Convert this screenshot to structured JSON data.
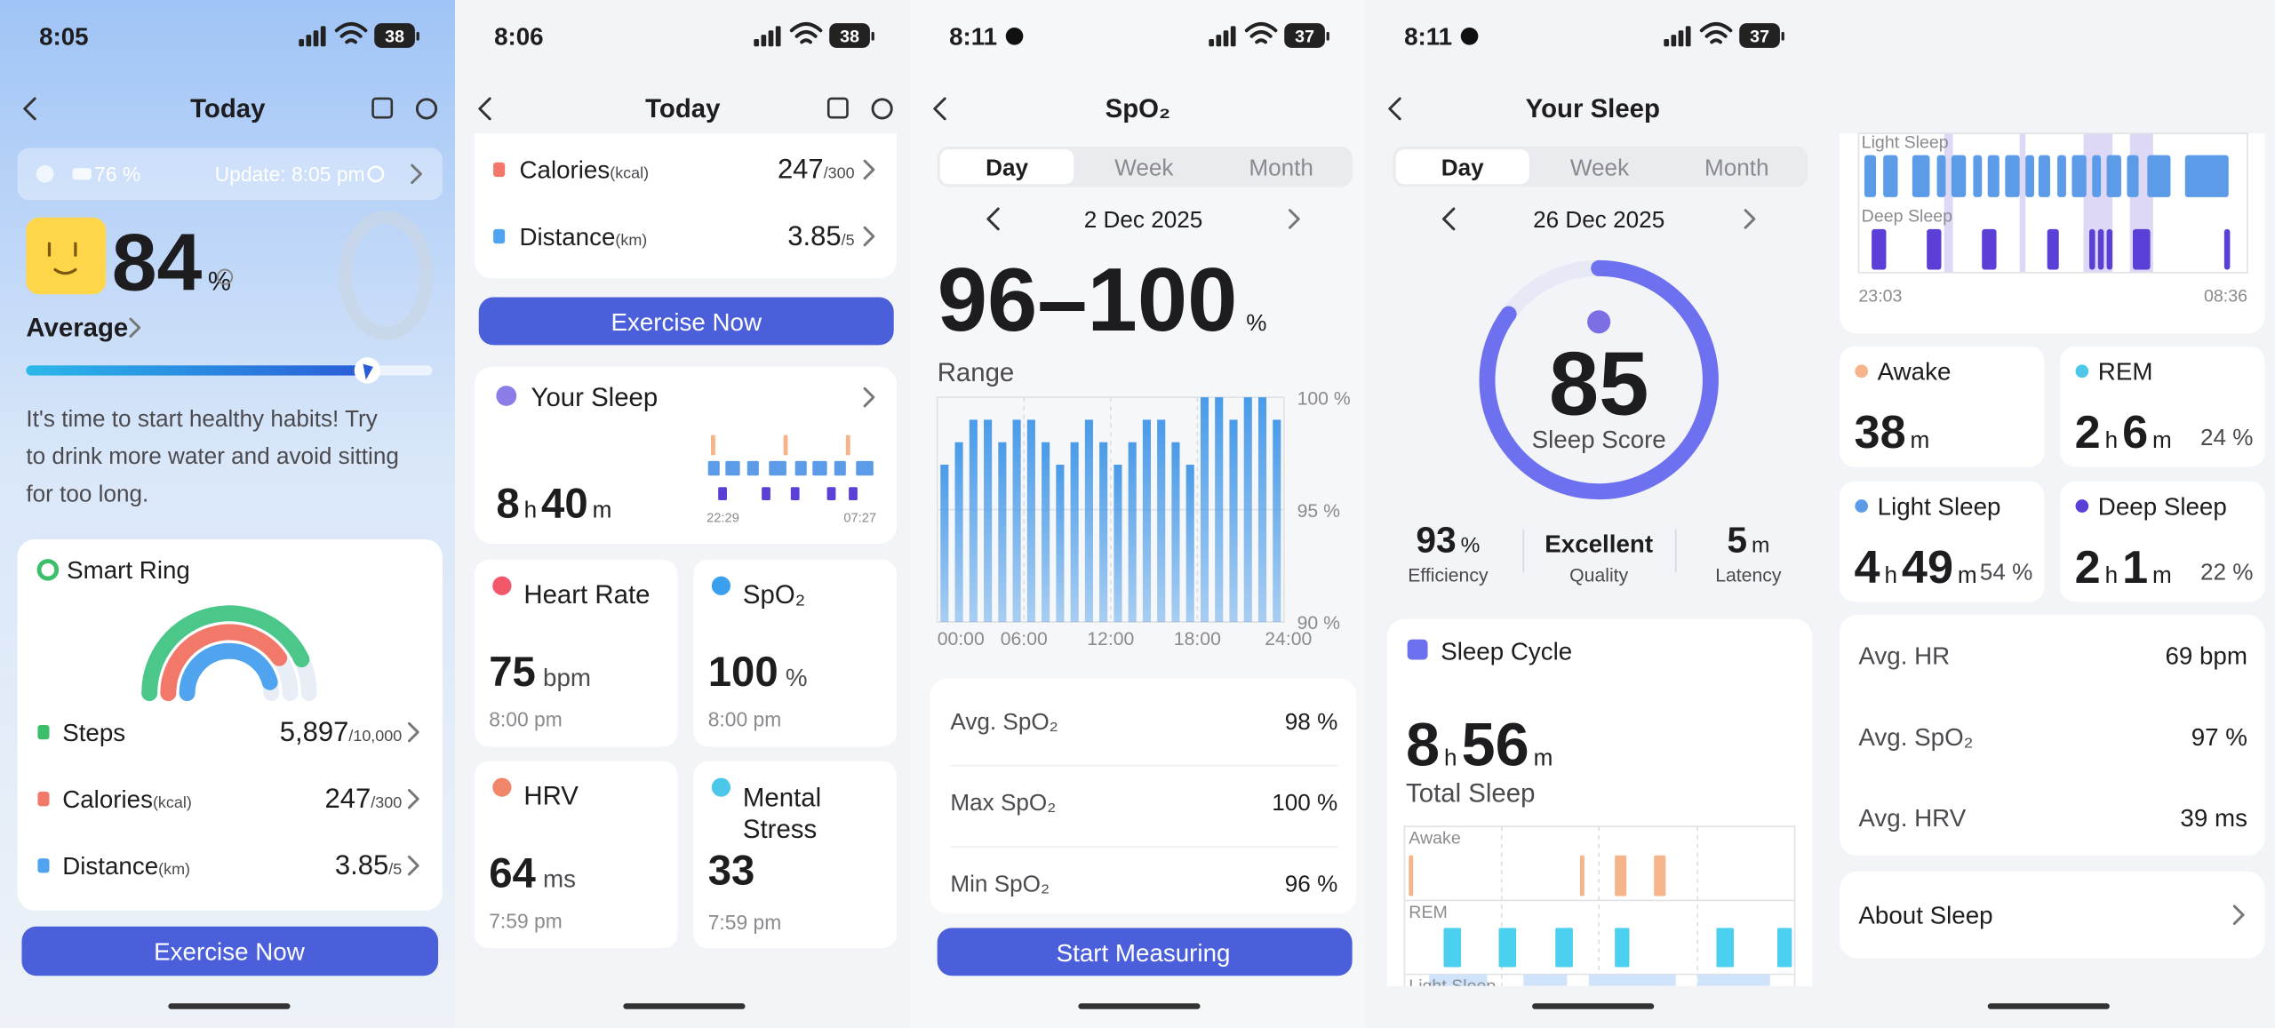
{
  "screens": [
    {
      "status": {
        "time": "8:05",
        "battery": "38"
      },
      "header": "Today",
      "device": {
        "battery": "76 %",
        "update": "Update: 8:05 pm"
      },
      "score": {
        "value": 84,
        "unit": "%",
        "label": "Average"
      },
      "message": [
        "It's time to start healthy habits! Try",
        "to drink more water and avoid sitting",
        "for too long."
      ],
      "ring_card": {
        "title": "Smart Ring",
        "rows": [
          {
            "label": "Steps",
            "value": "5,897",
            "goal": "/10,000"
          },
          {
            "label": "Calories",
            "unit": "(kcal)",
            "value": "247",
            "goal": "/300"
          },
          {
            "label": "Distance",
            "unit": "(km)",
            "value": "3.85",
            "goal": "/5"
          }
        ]
      },
      "button": "Exercise Now"
    },
    {
      "status": {
        "time": "8:06",
        "battery": "38"
      },
      "header": "Today",
      "rows": [
        {
          "label": "Calories",
          "unit": "(kcal)",
          "value": "247",
          "goal": "/300"
        },
        {
          "label": "Distance",
          "unit": "(km)",
          "value": "3.85",
          "goal": "/5"
        }
      ],
      "button": "Exercise Now",
      "sleep": {
        "title": "Your Sleep",
        "duration": [
          "8",
          "h",
          "40",
          "m"
        ],
        "start": "22:29",
        "end": "07:27"
      },
      "tiles": [
        {
          "title": "Heart Rate",
          "value": "75",
          "unit": "bpm",
          "time": "8:00 pm"
        },
        {
          "title": "SpO₂",
          "value": "100",
          "unit": "%",
          "time": "8:00 pm"
        },
        {
          "title": "HRV",
          "value": "64",
          "unit": "ms",
          "time": "7:59 pm"
        },
        {
          "title": [
            "Mental",
            "Stress"
          ],
          "value": "33",
          "time": "7:59 pm"
        }
      ]
    },
    {
      "status": {
        "time": "8:11",
        "battery": "37"
      },
      "header": "SpO₂",
      "tabs": [
        "Day",
        "Week",
        "Month"
      ],
      "date": "2 Dec 2025",
      "range": {
        "value": "96–100",
        "unit": "%",
        "label": "Range"
      },
      "chart": {
        "type": "bar",
        "color": "#4a9be8",
        "values": [
          97,
          98,
          99,
          99,
          98,
          99,
          99,
          98,
          97,
          98,
          99,
          98,
          97,
          98,
          99,
          99,
          98,
          97,
          100,
          100,
          99,
          100,
          100,
          99
        ],
        "ylim": [
          90,
          100
        ],
        "yticks": [
          {
            "value": 100,
            "label": "100 %"
          },
          {
            "value": 95,
            "label": "95 %"
          },
          {
            "value": 90,
            "label": "90 %"
          }
        ],
        "xticks": [
          "00:00",
          "06:00",
          "12:00",
          "18:00",
          "24:00"
        ]
      },
      "stats": [
        {
          "label": "Avg. SpO₂",
          "value": "98 %"
        },
        {
          "label": "Max SpO₂",
          "value": "100 %"
        },
        {
          "label": "Min SpO₂",
          "value": "96 %"
        }
      ],
      "button": "Start Measuring"
    },
    {
      "status": {
        "time": "8:11",
        "battery": "37"
      },
      "header": "Your Sleep",
      "tabs": [
        "Day",
        "Week",
        "Month"
      ],
      "date": "26 Dec 2025",
      "score": {
        "value": 85,
        "label": "Sleep Score"
      },
      "metrics": [
        {
          "value": "93",
          "unit": "%",
          "label": "Efficiency"
        },
        {
          "value": "Excellent",
          "label": "Quality"
        },
        {
          "value": "5",
          "unit": "m",
          "label": "Latency"
        }
      ],
      "cycle": {
        "title": "Sleep Cycle",
        "duration": [
          "8",
          "h",
          "56",
          "m"
        ],
        "label": "Total Sleep",
        "stages": [
          "Awake",
          "REM",
          "Light Sleep"
        ]
      }
    },
    {
      "status": {
        "time": "8:11",
        "battery": "37"
      },
      "header": "Your Sleep",
      "chart": {
        "stages": [
          "Light Sleep",
          "Deep Sleep"
        ],
        "start": "23:03",
        "end": "08:36"
      },
      "stages": [
        {
          "name": "Awake",
          "duration": [
            "38",
            "m"
          ],
          "color": "#f5b48a"
        },
        {
          "name": "REM",
          "duration": [
            "2",
            "h",
            "6",
            "m"
          ],
          "percent": "24 %",
          "color": "#4cc7ea"
        },
        {
          "name": "Light Sleep",
          "duration": [
            "4",
            "h",
            "49",
            "m"
          ],
          "percent": "54 %",
          "color": "#5b9be8"
        },
        {
          "name": "Deep Sleep",
          "duration": [
            "2",
            "h",
            "1",
            "m"
          ],
          "percent": "22 %",
          "color": "#5b3fd6"
        }
      ],
      "averages": [
        {
          "label": "Avg. HR",
          "value": "69 bpm"
        },
        {
          "label": "Avg. SpO₂",
          "value": "97 %"
        },
        {
          "label": "Avg. HRV",
          "value": "39 ms"
        }
      ],
      "about": "About Sleep"
    }
  ]
}
